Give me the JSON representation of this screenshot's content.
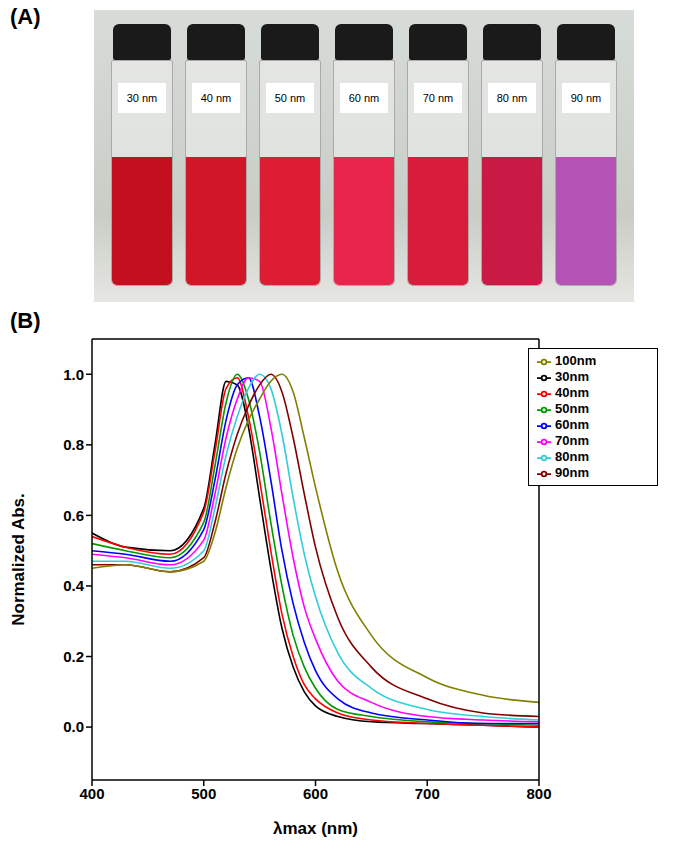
{
  "photo": {
    "panel_label": "(A)",
    "vials": [
      {
        "label": "30 nm",
        "color": "#c3101e"
      },
      {
        "label": "40 nm",
        "color": "#d11628"
      },
      {
        "label": "50 nm",
        "color": "#dc1d33"
      },
      {
        "label": "60 nm",
        "color": "#e8264c"
      },
      {
        "label": "70 nm",
        "color": "#d81d3c"
      },
      {
        "label": "80 nm",
        "color": "#c81a45"
      },
      {
        "label": "90 nm",
        "color": "#b353b5"
      }
    ]
  },
  "chart_data": {
    "type": "line",
    "panel_label": "(B)",
    "x_label": "λmax (nm)",
    "y_label": "Normalized Abs.",
    "x": [
      400,
      430,
      470,
      500,
      510,
      520,
      530,
      540,
      550,
      560,
      570,
      580,
      590,
      600,
      620,
      650,
      700,
      750,
      800
    ],
    "series": [
      {
        "name": "30nm",
        "color": "#000000",
        "values": [
          0.55,
          0.51,
          0.5,
          0.62,
          0.8,
          0.98,
          0.97,
          0.85,
          0.65,
          0.45,
          0.28,
          0.17,
          0.1,
          0.06,
          0.03,
          0.015,
          0.01,
          0.005,
          0.0
        ]
      },
      {
        "name": "40nm",
        "color": "#ff0000",
        "values": [
          0.54,
          0.51,
          0.49,
          0.61,
          0.78,
          0.96,
          0.99,
          0.88,
          0.7,
          0.5,
          0.32,
          0.2,
          0.12,
          0.08,
          0.04,
          0.02,
          0.01,
          0.005,
          0.0
        ]
      },
      {
        "name": "50nm",
        "color": "#009900",
        "values": [
          0.52,
          0.5,
          0.48,
          0.58,
          0.74,
          0.92,
          1.0,
          0.93,
          0.78,
          0.58,
          0.4,
          0.26,
          0.17,
          0.11,
          0.05,
          0.03,
          0.015,
          0.01,
          0.005
        ]
      },
      {
        "name": "60nm",
        "color": "#0000ff",
        "values": [
          0.5,
          0.49,
          0.47,
          0.56,
          0.7,
          0.87,
          0.97,
          0.99,
          0.88,
          0.7,
          0.5,
          0.35,
          0.24,
          0.16,
          0.08,
          0.04,
          0.02,
          0.01,
          0.01
        ]
      },
      {
        "name": "70nm",
        "color": "#ff00ff",
        "values": [
          0.49,
          0.48,
          0.46,
          0.53,
          0.66,
          0.82,
          0.93,
          0.99,
          0.98,
          0.85,
          0.66,
          0.48,
          0.34,
          0.25,
          0.13,
          0.07,
          0.03,
          0.02,
          0.015
        ]
      },
      {
        "name": "80nm",
        "color": "#33ccdd",
        "values": [
          0.47,
          0.47,
          0.45,
          0.5,
          0.62,
          0.77,
          0.88,
          0.96,
          1.0,
          0.96,
          0.83,
          0.65,
          0.49,
          0.37,
          0.21,
          0.11,
          0.05,
          0.03,
          0.02
        ]
      },
      {
        "name": "90nm",
        "color": "#800000",
        "values": [
          0.46,
          0.46,
          0.44,
          0.48,
          0.58,
          0.72,
          0.83,
          0.91,
          0.97,
          1.0,
          0.95,
          0.82,
          0.66,
          0.51,
          0.31,
          0.17,
          0.08,
          0.04,
          0.03
        ]
      },
      {
        "name": "100nm",
        "color": "#808000",
        "values": [
          0.45,
          0.46,
          0.44,
          0.47,
          0.55,
          0.68,
          0.79,
          0.87,
          0.93,
          0.98,
          1.0,
          0.95,
          0.82,
          0.68,
          0.44,
          0.26,
          0.14,
          0.09,
          0.07
        ]
      }
    ],
    "xlim": [
      400,
      800
    ],
    "xticks": [
      400,
      500,
      600,
      700,
      800
    ],
    "ylim": [
      -0.15,
      1.1
    ],
    "yticks": [
      {
        "value": 0,
        "label": "0.0"
      },
      {
        "value": 0.2,
        "label": "0.2"
      },
      {
        "value": 0.4,
        "label": "0.4"
      },
      {
        "value": 0.6,
        "label": "0.6"
      },
      {
        "value": 0.8,
        "label": "0.8"
      },
      {
        "value": 1,
        "label": "1.0"
      }
    ],
    "legend": "upper right",
    "grid": false
  }
}
